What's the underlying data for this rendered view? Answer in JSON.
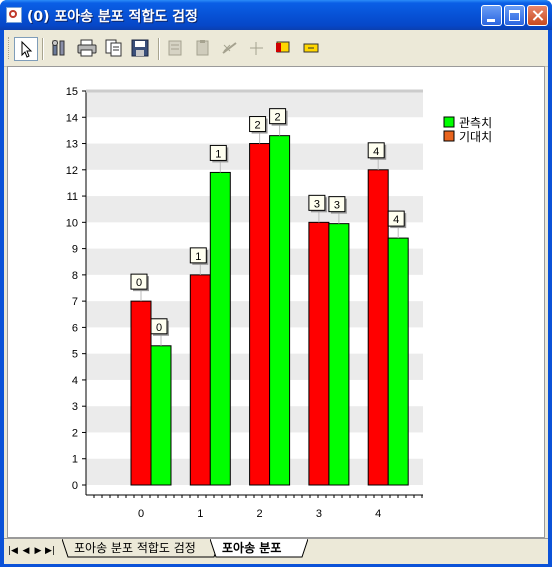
{
  "window": {
    "title": "(0) 포아송 분포 적합도 검정"
  },
  "toolbar": {
    "buttons": [
      {
        "name": "pointer-icon",
        "enabled": true
      },
      {
        "name": "properties-icon",
        "enabled": true
      },
      {
        "name": "print-icon",
        "enabled": true
      },
      {
        "name": "copy-icon",
        "enabled": true
      },
      {
        "name": "save-icon",
        "enabled": true
      },
      {
        "name": "table-view-icon",
        "enabled": false
      },
      {
        "name": "document-icon",
        "enabled": false
      },
      {
        "name": "scale-icon",
        "enabled": false
      },
      {
        "name": "crosshair-icon",
        "enabled": false
      },
      {
        "name": "marker-icon",
        "enabled": true
      },
      {
        "name": "label-icon",
        "enabled": true
      }
    ]
  },
  "sheets": {
    "tabs": [
      {
        "label": "포아송 분포 적합도 검정",
        "active": false
      },
      {
        "label": "포아송 분포",
        "active": true
      }
    ]
  },
  "colors": {
    "expected": "#ff0000",
    "observed": "#00ff00",
    "legend_expected": "#e8641e",
    "band": "#ebebeb"
  },
  "chart_data": {
    "type": "bar",
    "categories": [
      "0",
      "1",
      "2",
      "3",
      "4"
    ],
    "series": [
      {
        "name": "기대치",
        "values": [
          7.0,
          8.0,
          13.0,
          10.0,
          12.0
        ],
        "data_labels": [
          "0",
          "1",
          "2",
          "3",
          "4"
        ]
      },
      {
        "name": "관측치",
        "values": [
          5.3,
          11.9,
          13.3,
          9.95,
          9.4
        ],
        "data_labels": [
          "0",
          "1",
          "2",
          "3",
          "4"
        ]
      }
    ],
    "legend": [
      "관측치",
      "기대치"
    ],
    "legend_position": "top-right",
    "yticks": [
      "0",
      "1",
      "2",
      "3",
      "4",
      "5",
      "6",
      "7",
      "8",
      "9",
      "10",
      "11",
      "12",
      "13",
      "14",
      "15"
    ],
    "ylim": [
      0,
      15
    ],
    "grid": "alternating bands"
  }
}
